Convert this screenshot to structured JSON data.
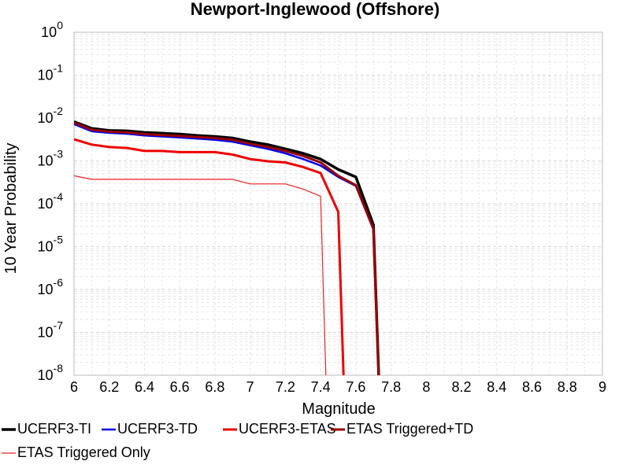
{
  "chart_data": {
    "type": "line",
    "title": "Newport-Inglewood (Offshore)",
    "xlabel": "Magnitude",
    "ylabel": "10 Year Probability",
    "xlim": [
      6,
      9
    ],
    "ylim": [
      1e-08,
      1
    ],
    "yscale": "log",
    "grid": true,
    "legend_position": "bottom",
    "x_ticks": [
      "6",
      "6.2",
      "6.4",
      "6.6",
      "6.8",
      "7",
      "7.2",
      "7.4",
      "7.6",
      "7.8",
      "8",
      "8.2",
      "8.4",
      "8.6",
      "8.8",
      "9"
    ],
    "y_ticks": [
      {
        "value": 1,
        "base": "10",
        "exp": "0"
      },
      {
        "value": 0.1,
        "base": "10",
        "exp": "-1"
      },
      {
        "value": 0.01,
        "base": "10",
        "exp": "-2"
      },
      {
        "value": 0.001,
        "base": "10",
        "exp": "-3"
      },
      {
        "value": 0.0001,
        "base": "10",
        "exp": "-4"
      },
      {
        "value": 1e-05,
        "base": "10",
        "exp": "-5"
      },
      {
        "value": 1e-06,
        "base": "10",
        "exp": "-6"
      },
      {
        "value": 1e-07,
        "base": "10",
        "exp": "-7"
      },
      {
        "value": 1e-08,
        "base": "10",
        "exp": "-8"
      }
    ],
    "series": [
      {
        "name": "UCERF3-TI",
        "color": "#000000",
        "width": 3.5,
        "points": [
          [
            6.0,
            0.0082
          ],
          [
            6.1,
            0.0057
          ],
          [
            6.2,
            0.0051
          ],
          [
            6.3,
            0.005
          ],
          [
            6.4,
            0.0046
          ],
          [
            6.5,
            0.0044
          ],
          [
            6.6,
            0.0042
          ],
          [
            6.7,
            0.0039
          ],
          [
            6.8,
            0.0037
          ],
          [
            6.9,
            0.0034
          ],
          [
            7.0,
            0.0028
          ],
          [
            7.1,
            0.0024
          ],
          [
            7.2,
            0.0019
          ],
          [
            7.3,
            0.0015
          ],
          [
            7.4,
            0.0011
          ],
          [
            7.5,
            0.00063
          ],
          [
            7.6,
            0.00042
          ],
          [
            7.7,
            3.2e-05
          ],
          [
            7.73,
            1e-08
          ]
        ]
      },
      {
        "name": "UCERF3-TD",
        "color": "#0000ee",
        "width": 2.5,
        "points": [
          [
            6.0,
            0.0072
          ],
          [
            6.1,
            0.0049
          ],
          [
            6.2,
            0.0045
          ],
          [
            6.3,
            0.0043
          ],
          [
            6.4,
            0.0039
          ],
          [
            6.5,
            0.0037
          ],
          [
            6.6,
            0.0035
          ],
          [
            6.7,
            0.0033
          ],
          [
            6.8,
            0.0031
          ],
          [
            6.9,
            0.0028
          ],
          [
            7.0,
            0.0023
          ],
          [
            7.1,
            0.0019
          ],
          [
            7.2,
            0.0015
          ],
          [
            7.3,
            0.0011
          ],
          [
            7.4,
            0.00078
          ],
          [
            7.5,
            0.00042
          ],
          [
            7.6,
            0.00026
          ],
          [
            7.7,
            2.5e-05
          ],
          [
            7.73,
            1e-08
          ]
        ]
      },
      {
        "name": "UCERF3-ETAS",
        "color": "#ee0000",
        "width": 3,
        "points": [
          [
            6.0,
            0.0032
          ],
          [
            6.1,
            0.0024
          ],
          [
            6.2,
            0.0021
          ],
          [
            6.3,
            0.002
          ],
          [
            6.4,
            0.0017
          ],
          [
            6.5,
            0.0017
          ],
          [
            6.6,
            0.0016
          ],
          [
            6.7,
            0.0016
          ],
          [
            6.8,
            0.0016
          ],
          [
            6.9,
            0.0014
          ],
          [
            7.0,
            0.0011
          ],
          [
            7.1,
            0.00098
          ],
          [
            7.2,
            0.00092
          ],
          [
            7.3,
            0.00072
          ],
          [
            7.4,
            0.00052
          ],
          [
            7.5,
            6.5e-05
          ],
          [
            7.53,
            1e-08
          ]
        ]
      },
      {
        "name": "ETAS Triggered+TD",
        "color": "#990000",
        "width": 3,
        "points": [
          [
            6.0,
            0.0078
          ],
          [
            6.1,
            0.0053
          ],
          [
            6.2,
            0.0048
          ],
          [
            6.3,
            0.0046
          ],
          [
            6.4,
            0.0042
          ],
          [
            6.5,
            0.004
          ],
          [
            6.6,
            0.0038
          ],
          [
            6.7,
            0.0036
          ],
          [
            6.8,
            0.0034
          ],
          [
            6.9,
            0.0031
          ],
          [
            7.0,
            0.0025
          ],
          [
            7.1,
            0.0021
          ],
          [
            7.2,
            0.0017
          ],
          [
            7.3,
            0.0013
          ],
          [
            7.4,
            0.00092
          ],
          [
            7.5,
            0.00045
          ],
          [
            7.6,
            0.00027
          ],
          [
            7.7,
            2.6e-05
          ],
          [
            7.73,
            1e-08
          ]
        ]
      },
      {
        "name": "ETAS Triggered Only",
        "color": "#ee2222",
        "width": 1.2,
        "points": [
          [
            6.0,
            0.00045
          ],
          [
            6.1,
            0.00037
          ],
          [
            6.2,
            0.00037
          ],
          [
            6.3,
            0.00037
          ],
          [
            6.4,
            0.00037
          ],
          [
            6.5,
            0.00037
          ],
          [
            6.6,
            0.00037
          ],
          [
            6.7,
            0.00037
          ],
          [
            6.8,
            0.00037
          ],
          [
            6.9,
            0.00037
          ],
          [
            7.0,
            0.00029
          ],
          [
            7.1,
            0.00029
          ],
          [
            7.2,
            0.00029
          ],
          [
            7.3,
            0.00022
          ],
          [
            7.4,
            0.00015
          ],
          [
            7.43,
            1e-08
          ]
        ]
      }
    ]
  }
}
